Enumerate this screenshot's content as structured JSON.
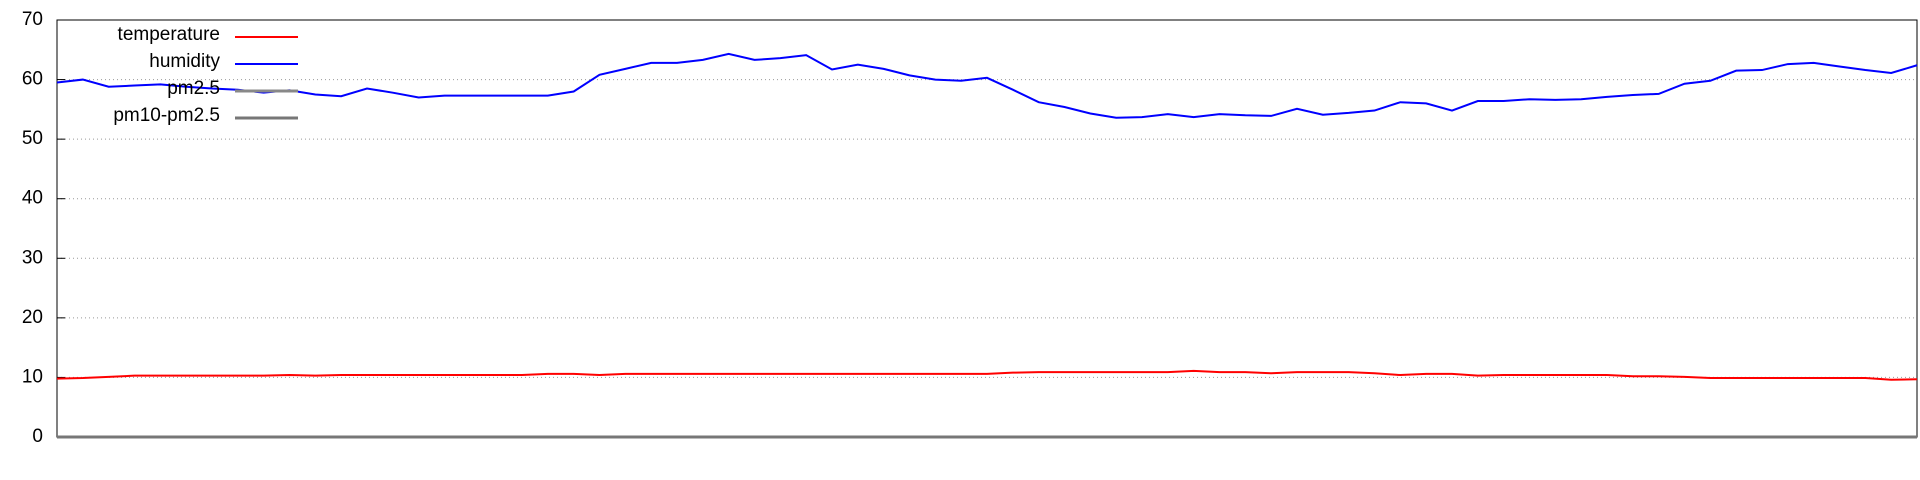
{
  "chart_data": {
    "type": "line",
    "categories": [
      null,
      null,
      null,
      null,
      null,
      null,
      null,
      null,
      null,
      null,
      null,
      null,
      null,
      null,
      null,
      null,
      null,
      null,
      null,
      null,
      null,
      null,
      null,
      null,
      null,
      null,
      null,
      null,
      null,
      null,
      null,
      null,
      null,
      null,
      null,
      null,
      null,
      null,
      null,
      null,
      null,
      null,
      null,
      null,
      null,
      null,
      null,
      null,
      null,
      null,
      null,
      null,
      null,
      null,
      null,
      null,
      null,
      null,
      null,
      null,
      null,
      null,
      null,
      null,
      null,
      null,
      null,
      null,
      null,
      null,
      null,
      null,
      null
    ],
    "series": [
      {
        "name": "temperature",
        "color": "#ff0000",
        "values": [
          9.8,
          9.9,
          10.1,
          10.3,
          10.3,
          10.3,
          10.3,
          10.3,
          10.3,
          10.4,
          10.3,
          10.4,
          10.4,
          10.4,
          10.4,
          10.4,
          10.4,
          10.4,
          10.4,
          10.6,
          10.6,
          10.4,
          10.6,
          10.6,
          10.6,
          10.6,
          10.6,
          10.6,
          10.6,
          10.6,
          10.6,
          10.6,
          10.6,
          10.6,
          10.6,
          10.6,
          10.6,
          10.8,
          10.9,
          10.9,
          10.9,
          10.9,
          10.9,
          10.9,
          11.1,
          10.9,
          10.9,
          10.7,
          10.9,
          10.9,
          10.9,
          10.7,
          10.4,
          10.6,
          10.6,
          10.3,
          10.4,
          10.4,
          10.4,
          10.4,
          10.4,
          10.2,
          10.2,
          10.1,
          9.9,
          9.9,
          9.9,
          9.9,
          9.9,
          9.9,
          9.9,
          9.6,
          9.7
        ]
      },
      {
        "name": "humidity",
        "color": "#0000ff",
        "values": [
          59.5,
          60,
          58.8,
          59,
          59.2,
          58.8,
          58.5,
          58.3,
          57.8,
          58.2,
          57.5,
          57.2,
          58.5,
          57.8,
          57,
          57.3,
          57.3,
          57.3,
          57.3,
          57.3,
          58,
          60.8,
          61.8,
          62.8,
          62.8,
          63.3,
          64.3,
          63.3,
          63.6,
          64.1,
          61.7,
          62.5,
          61.8,
          60.7,
          60,
          59.8,
          60.3,
          58.3,
          56.2,
          55.4,
          54.3,
          53.6,
          53.7,
          54.2,
          53.7,
          54.2,
          54,
          53.9,
          55.1,
          54.1,
          54.4,
          54.8,
          56.2,
          56,
          54.8,
          56.4,
          56.4,
          56.7,
          56.6,
          56.7,
          57.1,
          57.4,
          57.6,
          59.3,
          59.8,
          61.5,
          61.6,
          62.6,
          62.8,
          62.2,
          61.6,
          61.1,
          62.4
        ]
      },
      {
        "name": "pm2.5",
        "color": "#888888",
        "values": [
          0,
          0,
          0,
          0,
          0,
          0,
          0,
          0,
          0,
          0,
          0,
          0,
          0,
          0,
          0,
          0,
          0,
          0,
          0,
          0,
          0,
          0,
          0,
          0,
          0,
          0,
          0,
          0,
          0,
          0,
          0,
          0,
          0,
          0,
          0,
          0,
          0,
          0,
          0,
          0,
          0,
          0,
          0,
          0,
          0,
          0,
          0,
          0,
          0,
          0,
          0,
          0,
          0,
          0,
          0,
          0,
          0,
          0,
          0,
          0,
          0,
          0,
          0,
          0,
          0,
          0,
          0,
          0,
          0,
          0,
          0,
          0,
          0
        ]
      },
      {
        "name": "pm10-pm2.5",
        "color": "#777777",
        "values": [
          0,
          0,
          0,
          0,
          0,
          0,
          0,
          0,
          0,
          0,
          0,
          0,
          0,
          0,
          0,
          0,
          0,
          0,
          0,
          0,
          0,
          0,
          0,
          0,
          0,
          0,
          0,
          0,
          0,
          0,
          0,
          0,
          0,
          0,
          0,
          0,
          0,
          0,
          0,
          0,
          0,
          0,
          0,
          0,
          0,
          0,
          0,
          0,
          0,
          0,
          0,
          0,
          0,
          0,
          0,
          0,
          0,
          0,
          0,
          0,
          0,
          0,
          0,
          0,
          0,
          0,
          0,
          0,
          0,
          0,
          0,
          0,
          0
        ]
      }
    ],
    "ylim": [
      0,
      70
    ],
    "yticks": [
      0,
      10,
      20,
      30,
      40,
      50,
      60,
      70
    ],
    "grid": true,
    "legend": "top-left"
  }
}
